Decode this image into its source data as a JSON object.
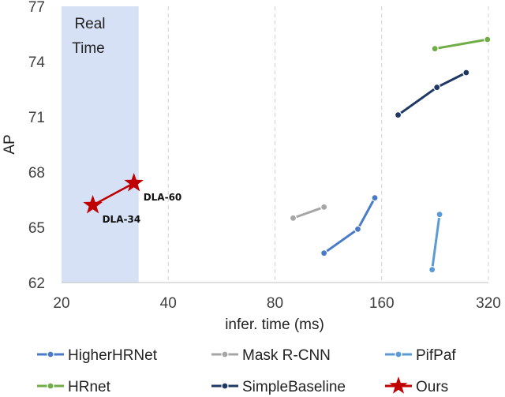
{
  "chart_data": {
    "type": "line",
    "xlabel": "infer. time (ms)",
    "ylabel": "AP",
    "x_scale": "log2",
    "xlim": [
      20,
      320
    ],
    "ylim": [
      62,
      77
    ],
    "x_ticks": [
      20,
      40,
      80,
      160,
      320
    ],
    "y_ticks": [
      62,
      65,
      68,
      71,
      74,
      77
    ],
    "grid": {
      "x": true,
      "y": false,
      "x_style": "dashed"
    },
    "legend_position": "bottom",
    "real_time_region": {
      "label_lines": [
        "Real",
        "Time"
      ],
      "x_range": [
        20,
        33
      ],
      "color": "#d6e1f5"
    },
    "series": [
      {
        "name": "HigherHRNet",
        "color": "#4a7bc8",
        "marker": "circle",
        "points": [
          [
            110,
            63.6
          ],
          [
            137,
            64.9
          ],
          [
            153,
            66.6
          ]
        ]
      },
      {
        "name": "Mask R-CNN",
        "color": "#a6a6a6",
        "marker": "circle",
        "points": [
          [
            90,
            65.5
          ],
          [
            110,
            66.1
          ]
        ]
      },
      {
        "name": "PifPaf",
        "color": "#5b9bd5",
        "marker": "circle",
        "points": [
          [
            222,
            62.7
          ],
          [
            233,
            65.7
          ]
        ]
      },
      {
        "name": "HRnet",
        "color": "#70ad47",
        "marker": "circle",
        "points": [
          [
            226,
            74.7
          ],
          [
            318,
            75.2
          ]
        ]
      },
      {
        "name": "SimpleBaseline",
        "color": "#203864",
        "marker": "circle",
        "points": [
          [
            178,
            71.1
          ],
          [
            229,
            72.6
          ],
          [
            277,
            73.4
          ]
        ]
      },
      {
        "name": "Ours",
        "color": "#c00000",
        "marker": "star",
        "points": [
          [
            24.5,
            66.2,
            "DLA-34"
          ],
          [
            32,
            67.4,
            "DLA-60"
          ]
        ]
      }
    ]
  }
}
